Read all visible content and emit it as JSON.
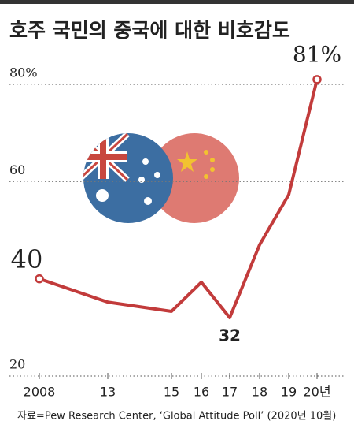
{
  "chart_data": {
    "type": "line",
    "title": "호주 국민의 중국에 대한 비호감도",
    "categories": [
      "2008",
      "13",
      "15",
      "16",
      "17",
      "18",
      "19",
      "20년"
    ],
    "values": [
      40,
      35.2,
      33.3,
      39.3,
      32,
      47,
      57.3,
      81
    ],
    "value_labels": [
      "40",
      null,
      null,
      null,
      "32",
      null,
      null,
      "81%"
    ],
    "color": "#c23b3b",
    "ylim": [
      20,
      80
    ],
    "yticks": [
      20,
      60,
      {
        "value": 80,
        "label": "80%"
      }
    ],
    "grid": true,
    "source": "자료=Pew Research Center, ‘Global Attitude Poll’ (2020년 10월)"
  }
}
